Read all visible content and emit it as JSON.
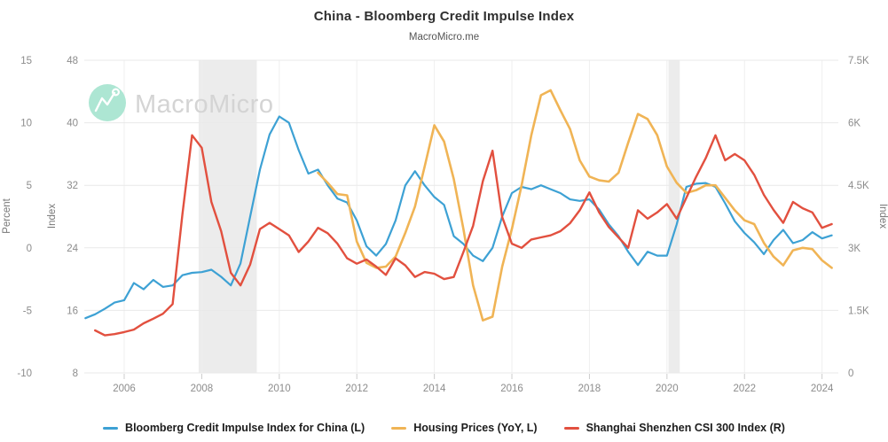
{
  "header": {
    "title": "China - Bloomberg Credit Impulse Index",
    "subtitle": "MacroMicro.me"
  },
  "watermark": {
    "text": "MacroMicro"
  },
  "colors": {
    "credit_impulse": "#3da1d4",
    "housing": "#f0b455",
    "csi300": "#e2503f",
    "grid": "#e9e9e9",
    "vgrid": "#efefef",
    "band": "#ececec",
    "tick_text": "#8c8c8c",
    "axis_title_text": "#777777",
    "watermark_text": "#d4d4d4",
    "watermark_logo": "#ade6d3",
    "tick_mark": "#cccccc"
  },
  "legend": {
    "items": [
      {
        "label": "Bloomberg Credit Impulse Index for China (L)",
        "color_key": "credit_impulse"
      },
      {
        "label": "Housing Prices (YoY, L)",
        "color_key": "housing"
      },
      {
        "label": "Shanghai Shenzhen CSI 300 Index (R)",
        "color_key": "csi300"
      }
    ]
  },
  "chart_data": {
    "type": "line",
    "title": "China - Bloomberg Credit Impulse Index",
    "subtitle": "MacroMicro.me",
    "grid": true,
    "legend_position": "bottom",
    "x_range": [
      2004.97,
      2024.42
    ],
    "x_ticks": [
      2006,
      2008,
      2010,
      2012,
      2014,
      2016,
      2018,
      2020,
      2022,
      2024
    ],
    "axes": {
      "left_percent": {
        "label": "Percent",
        "ticks": [
          15,
          10,
          5,
          0,
          -5,
          -10
        ],
        "range": [
          -10,
          15
        ]
      },
      "left_index": {
        "label": "Index",
        "ticks": [
          48,
          40,
          32,
          24,
          16,
          8
        ],
        "range": [
          8,
          48
        ]
      },
      "right_index": {
        "label": "Index",
        "ticks": [
          "7.5K",
          "6K",
          "4.5K",
          "3K",
          "1.5K",
          "0"
        ],
        "range": [
          0,
          7500
        ]
      }
    },
    "recession_bands": [
      {
        "from": 2007.92,
        "to": 2009.42
      },
      {
        "from": 2020.04,
        "to": 2020.33
      }
    ],
    "series": [
      {
        "name": "Bloomberg Credit Impulse Index for China (L)",
        "axis": "left_index",
        "color_key": "credit_impulse",
        "width": 2.2,
        "x_start": 2005.0,
        "x_step": 0.25,
        "values": [
          15.0,
          15.5,
          16.2,
          17.0,
          17.3,
          19.5,
          18.7,
          19.9,
          19.0,
          19.2,
          20.5,
          20.8,
          20.9,
          21.2,
          20.3,
          19.2,
          22.0,
          28.0,
          34.0,
          38.5,
          40.8,
          40.0,
          36.5,
          33.5,
          34.0,
          32.0,
          30.3,
          29.8,
          27.5,
          24.2,
          23.0,
          24.5,
          27.5,
          32.0,
          33.8,
          32.0,
          30.5,
          29.5,
          25.5,
          24.5,
          23.0,
          22.3,
          24.0,
          28.0,
          31.0,
          31.8,
          31.5,
          32.0,
          31.5,
          31.0,
          30.2,
          30.0,
          30.2,
          28.9,
          27.0,
          25.5,
          23.5,
          21.8,
          23.5,
          23.0,
          23.0,
          27.0,
          31.8,
          32.2,
          32.3,
          31.8,
          29.7,
          27.4,
          25.9,
          24.7,
          23.2,
          25.0,
          26.3,
          24.6,
          25.0,
          26.0,
          25.2,
          25.6
        ]
      },
      {
        "name": "Housing Prices (YoY, L)",
        "axis": "left_percent",
        "color_key": "housing",
        "width": 2.6,
        "x_start": 2011.0,
        "x_step": 0.25,
        "values": [
          6.0,
          5.2,
          4.3,
          4.2,
          0.5,
          -1.2,
          -1.6,
          -1.5,
          -0.7,
          1.2,
          3.3,
          6.5,
          9.8,
          8.5,
          5.5,
          1.5,
          -3.0,
          -5.8,
          -5.5,
          -1.5,
          1.5,
          5.0,
          9.0,
          12.2,
          12.6,
          11.0,
          9.5,
          7.0,
          5.7,
          5.4,
          5.3,
          6.0,
          8.4,
          10.7,
          10.3,
          9.0,
          6.5,
          5.2,
          4.4,
          4.6,
          5.0,
          5.0,
          4.0,
          3.0,
          2.2,
          1.9,
          0.4,
          -0.7,
          -1.4,
          -0.2,
          0.0,
          -0.1,
          -1.0,
          -1.6
        ]
      },
      {
        "name": "Shanghai Shenzhen CSI 300 Index (R)",
        "axis": "right_index",
        "color_key": "csi300",
        "width": 2.4,
        "x_start": 2005.25,
        "x_step": 0.25,
        "values": [
          1020,
          900,
          930,
          980,
          1040,
          1190,
          1300,
          1420,
          1650,
          3800,
          5700,
          5400,
          4100,
          3400,
          2400,
          2100,
          2600,
          3450,
          3600,
          3450,
          3300,
          2900,
          3150,
          3480,
          3350,
          3100,
          2750,
          2620,
          2720,
          2550,
          2350,
          2750,
          2580,
          2300,
          2420,
          2380,
          2250,
          2300,
          2900,
          3530,
          4600,
          5330,
          3740,
          3100,
          3000,
          3200,
          3250,
          3300,
          3400,
          3590,
          3900,
          4330,
          3850,
          3500,
          3250,
          3000,
          3900,
          3700,
          3850,
          4050,
          3700,
          4200,
          4700,
          5150,
          5700,
          5100,
          5250,
          5100,
          4750,
          4270,
          3910,
          3600,
          4100,
          3950,
          3850,
          3480,
          3570
        ]
      }
    ]
  }
}
